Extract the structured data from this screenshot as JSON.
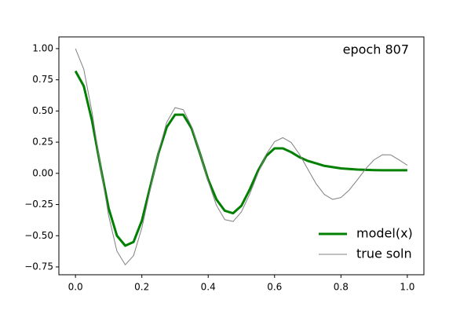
{
  "chart_data": {
    "type": "line",
    "annotation": "epoch 807",
    "x": [
      0,
      0.025,
      0.05,
      0.075,
      0.1,
      0.125,
      0.15,
      0.175,
      0.2,
      0.225,
      0.25,
      0.275,
      0.3,
      0.325,
      0.35,
      0.375,
      0.4,
      0.425,
      0.45,
      0.475,
      0.5,
      0.525,
      0.55,
      0.575,
      0.6,
      0.625,
      0.65,
      0.675,
      0.7,
      0.725,
      0.75,
      0.775,
      0.8,
      0.825,
      0.85,
      0.875,
      0.9,
      0.925,
      0.95,
      0.975,
      1.0
    ],
    "series": [
      {
        "name": "model(x)",
        "color": "#008000",
        "linewidth": 3,
        "values": [
          0.82,
          0.7,
          0.42,
          0.06,
          -0.28,
          -0.5,
          -0.58,
          -0.55,
          -0.38,
          -0.11,
          0.16,
          0.37,
          0.47,
          0.47,
          0.36,
          0.16,
          -0.05,
          -0.21,
          -0.3,
          -0.32,
          -0.26,
          -0.13,
          0.02,
          0.14,
          0.2,
          0.2,
          0.17,
          0.13,
          0.1,
          0.08,
          0.06,
          0.05,
          0.04,
          0.035,
          0.03,
          0.028,
          0.026,
          0.025,
          0.025,
          0.025,
          0.025
        ]
      },
      {
        "name": "true soln",
        "color": "#808080",
        "linewidth": 1,
        "values": [
          1.0,
          0.835,
          0.489,
          0.061,
          -0.341,
          -0.624,
          -0.733,
          -0.66,
          -0.438,
          -0.134,
          0.172,
          0.409,
          0.527,
          0.51,
          0.375,
          0.164,
          -0.065,
          -0.257,
          -0.371,
          -0.386,
          -0.309,
          -0.167,
          0.001,
          0.153,
          0.254,
          0.286,
          0.248,
          0.153,
          0.034,
          -0.083,
          -0.169,
          -0.209,
          -0.194,
          -0.134,
          -0.05,
          0.038,
          0.109,
          0.149,
          0.148,
          0.108,
          0.065
        ]
      }
    ],
    "xlim": [
      -0.05,
      1.05
    ],
    "ylim": [
      -0.813,
      1.094
    ],
    "xticks": [
      {
        "value": 0,
        "label": "0.0"
      },
      {
        "value": 0.2,
        "label": "0.2"
      },
      {
        "value": 0.4,
        "label": "0.4"
      },
      {
        "value": 0.6,
        "label": "0.6"
      },
      {
        "value": 0.8,
        "label": "0.8"
      },
      {
        "value": 1,
        "label": "1.0"
      }
    ],
    "yticks": [
      {
        "value": 1,
        "label": "1.00"
      },
      {
        "value": 0.75,
        "label": "0.75"
      },
      {
        "value": 0.5,
        "label": "0.50"
      },
      {
        "value": 0.25,
        "label": "0.25"
      },
      {
        "value": 0,
        "label": "0.00"
      },
      {
        "value": -0.25,
        "label": "−0.25"
      },
      {
        "value": -0.5,
        "label": "−0.50"
      },
      {
        "value": -0.75,
        "label": "−0.75"
      }
    ],
    "legend": "lower right"
  }
}
